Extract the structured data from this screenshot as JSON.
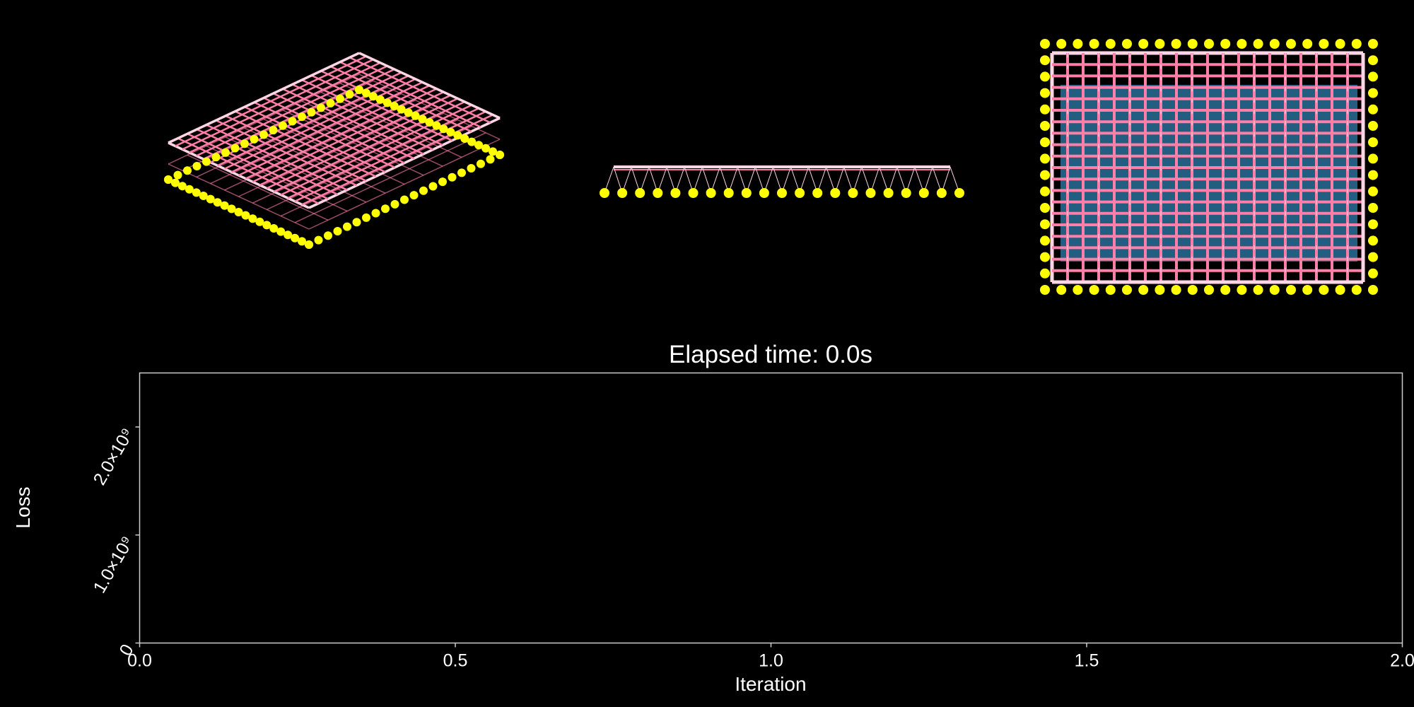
{
  "colors": {
    "background": "#000000",
    "axis": "#cccccc",
    "text": "#ffffff",
    "node": "#ffff00",
    "grid_pink": "#ff7fa8",
    "grid_light": "#ffd6e6",
    "grid_blue": "#3fa9e8"
  },
  "views": {
    "count": 3,
    "names": [
      "isometric",
      "side",
      "top"
    ],
    "grid_cells": 20,
    "support_count_per_edge": 21
  },
  "chart_data": {
    "type": "line",
    "title": "Elapsed time: 0.0s",
    "xlabel": "Iteration",
    "ylabel": "Loss",
    "xlim": [
      0.0,
      2.0
    ],
    "ylim": [
      0,
      2500000000
    ],
    "x_ticks": [
      0.0,
      0.5,
      1.0,
      1.5,
      2.0
    ],
    "x_tick_labels": [
      "0.0",
      "0.5",
      "1.0",
      "1.5",
      "2.0"
    ],
    "y_ticks": [
      0,
      1000000000,
      2000000000
    ],
    "y_tick_labels": [
      "0",
      "1.0×10⁹",
      "2.0×10⁹"
    ],
    "series": [
      {
        "name": "loss",
        "x": [],
        "y": []
      }
    ]
  }
}
